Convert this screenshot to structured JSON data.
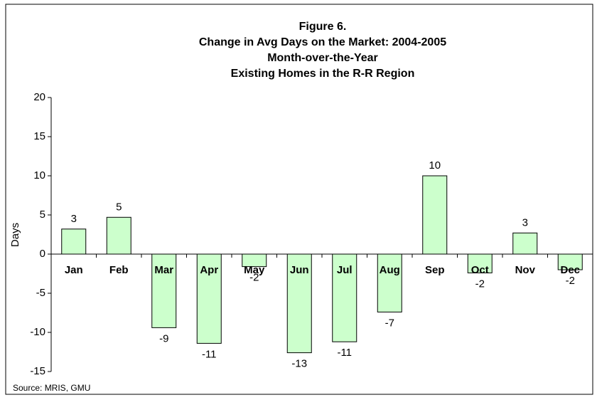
{
  "chart_data": {
    "type": "bar",
    "title": [
      "Figure 6.",
      "Change in Avg Days on the Market: 2004-2005",
      "Month-over-the-Year",
      "Existing Homes in the R-R Region"
    ],
    "y_label": "Days",
    "source": "Source: MRIS, GMU",
    "categories": [
      "Jan",
      "Feb",
      "Mar",
      "Apr",
      "May",
      "Jun",
      "Jul",
      "Aug",
      "Sep",
      "Oct",
      "Nov",
      "Dec"
    ],
    "values": [
      3.2,
      4.7,
      -9.4,
      -11.4,
      -1.6,
      -12.6,
      -11.2,
      -7.4,
      10,
      -2.4,
      2.7,
      -2
    ],
    "value_labels": [
      "3",
      "5",
      "-9",
      "-11",
      "-2",
      "-13",
      "-11",
      "-7",
      "10",
      "-2",
      "3",
      "-2"
    ],
    "color": "#ccffcc",
    "ylim": [
      -15,
      20
    ],
    "yticks": [
      -15,
      -10,
      -5,
      0,
      5,
      10,
      15,
      20
    ],
    "grid": false
  }
}
